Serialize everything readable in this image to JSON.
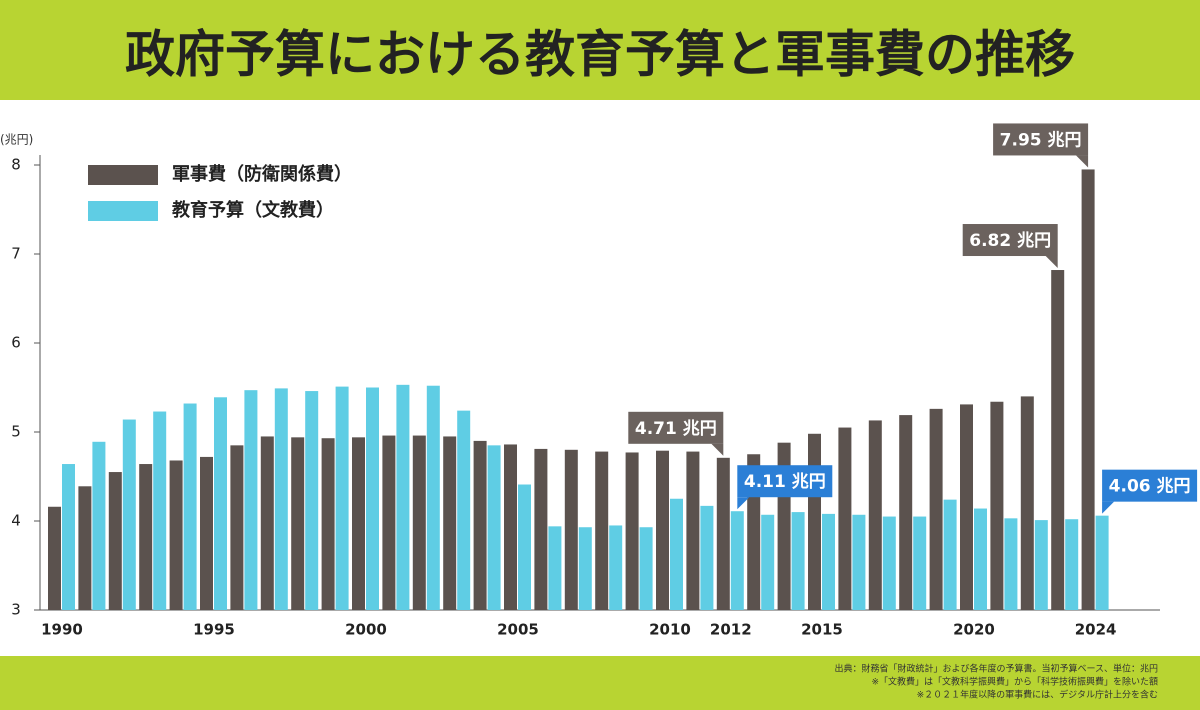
{
  "chart_data": {
    "type": "bar",
    "title": "政府予算における教育予算と軍事費の推移",
    "y_axis_label": "(兆円)",
    "categories": [
      "1990",
      null,
      null,
      null,
      null,
      "1995",
      null,
      null,
      null,
      null,
      "2000",
      null,
      null,
      null,
      null,
      "2005",
      null,
      null,
      null,
      null,
      "2010",
      null,
      "2012",
      null,
      null,
      "2015",
      null,
      null,
      null,
      null,
      "2020",
      null,
      null,
      null,
      "2024"
    ],
    "series": [
      {
        "name": "軍事費（防衛関係費）",
        "color": "#5b524e",
        "values": [
          4.16,
          4.39,
          4.55,
          4.64,
          4.68,
          4.72,
          4.85,
          4.95,
          4.94,
          4.93,
          4.94,
          4.96,
          4.96,
          4.95,
          4.9,
          4.86,
          4.81,
          4.8,
          4.78,
          4.77,
          4.79,
          4.78,
          4.71,
          4.75,
          4.88,
          4.98,
          5.05,
          5.13,
          5.19,
          5.26,
          5.31,
          5.34,
          5.4,
          6.82,
          7.95
        ],
        "value_labels": [
          null,
          null,
          null,
          null,
          null,
          null,
          null,
          null,
          null,
          null,
          null,
          null,
          null,
          null,
          null,
          null,
          null,
          null,
          null,
          null,
          null,
          null,
          "4.71 兆円",
          null,
          null,
          null,
          null,
          null,
          null,
          null,
          null,
          null,
          null,
          "6.82 兆円",
          "7.95 兆円"
        ],
        "label_color": "#6b625e"
      },
      {
        "name": "教育予算（文教費）",
        "color": "#5fcde4",
        "values": [
          4.64,
          4.89,
          5.14,
          5.23,
          5.32,
          5.39,
          5.47,
          5.49,
          5.46,
          5.51,
          5.5,
          5.53,
          5.52,
          5.24,
          4.85,
          4.41,
          3.94,
          3.93,
          3.95,
          3.93,
          4.25,
          4.17,
          4.11,
          4.07,
          4.1,
          4.08,
          4.07,
          4.05,
          4.05,
          4.24,
          4.14,
          4.03,
          4.01,
          4.02,
          4.06
        ],
        "value_labels": [
          null,
          null,
          null,
          null,
          null,
          null,
          null,
          null,
          null,
          null,
          null,
          null,
          null,
          null,
          null,
          null,
          null,
          null,
          null,
          null,
          null,
          null,
          "4.11 兆円",
          null,
          null,
          null,
          null,
          null,
          null,
          null,
          null,
          null,
          null,
          null,
          "4.06 兆円"
        ],
        "label_color": "#2b7fd6"
      }
    ],
    "ylim": [
      3,
      8
    ],
    "yticks": [
      3,
      4,
      5,
      6,
      7,
      8
    ],
    "legend": "top-left",
    "notes": [
      "出典：財務省「財政統計」および各年度の予算書。当初予算ベース、単位：兆円",
      "※「文教費」は「文教科学振興費」から「科学技術振興費」を除いた額",
      "※２０２１年度以降の軍事費には、デジタル庁計上分を含む"
    ]
  }
}
